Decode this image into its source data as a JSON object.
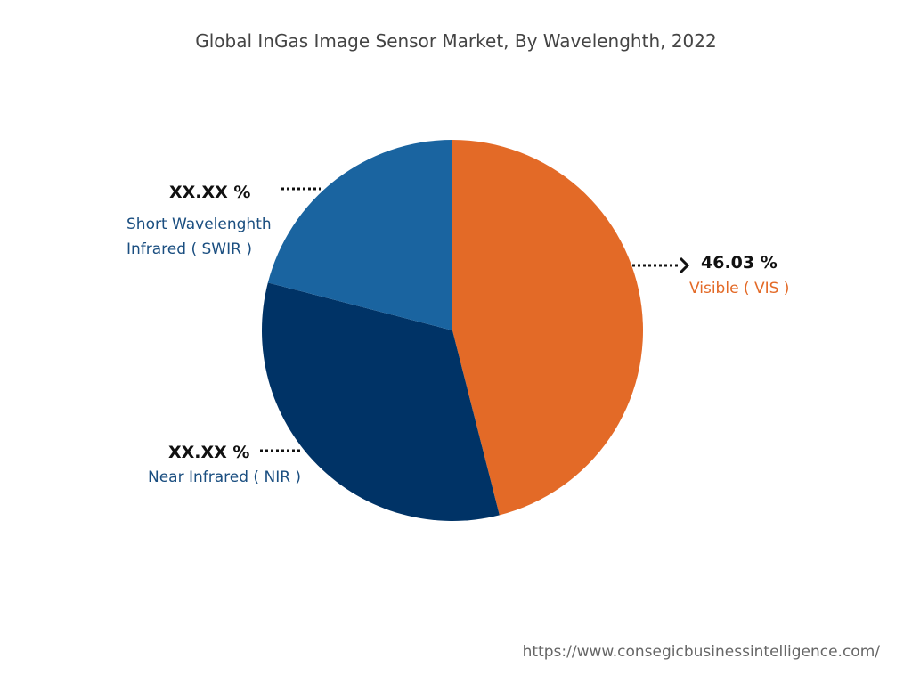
{
  "chart_data": {
    "type": "pie",
    "title": "Global InGas Image Sensor Market, By Wavelenghth, 2022",
    "slices": [
      {
        "label": "Visible ( VIS )",
        "value_label": "46.03 %",
        "value": 46.03,
        "color": "#E36A27"
      },
      {
        "label": "Near Infrared ( NIR )",
        "value_label": "XX.XX %",
        "value": 33.0,
        "color": "#003366"
      },
      {
        "label": "Short Wavelenghth Infrared ( SWIR )",
        "label_lines": [
          "Short Wavelenghth",
          "Infrared ( SWIR )"
        ],
        "value_label": "XX.XX %",
        "value": 20.97,
        "color": "#1A64A0"
      }
    ]
  },
  "footer": {
    "url": "https://www.consegicbusinessintelligence.com/"
  }
}
